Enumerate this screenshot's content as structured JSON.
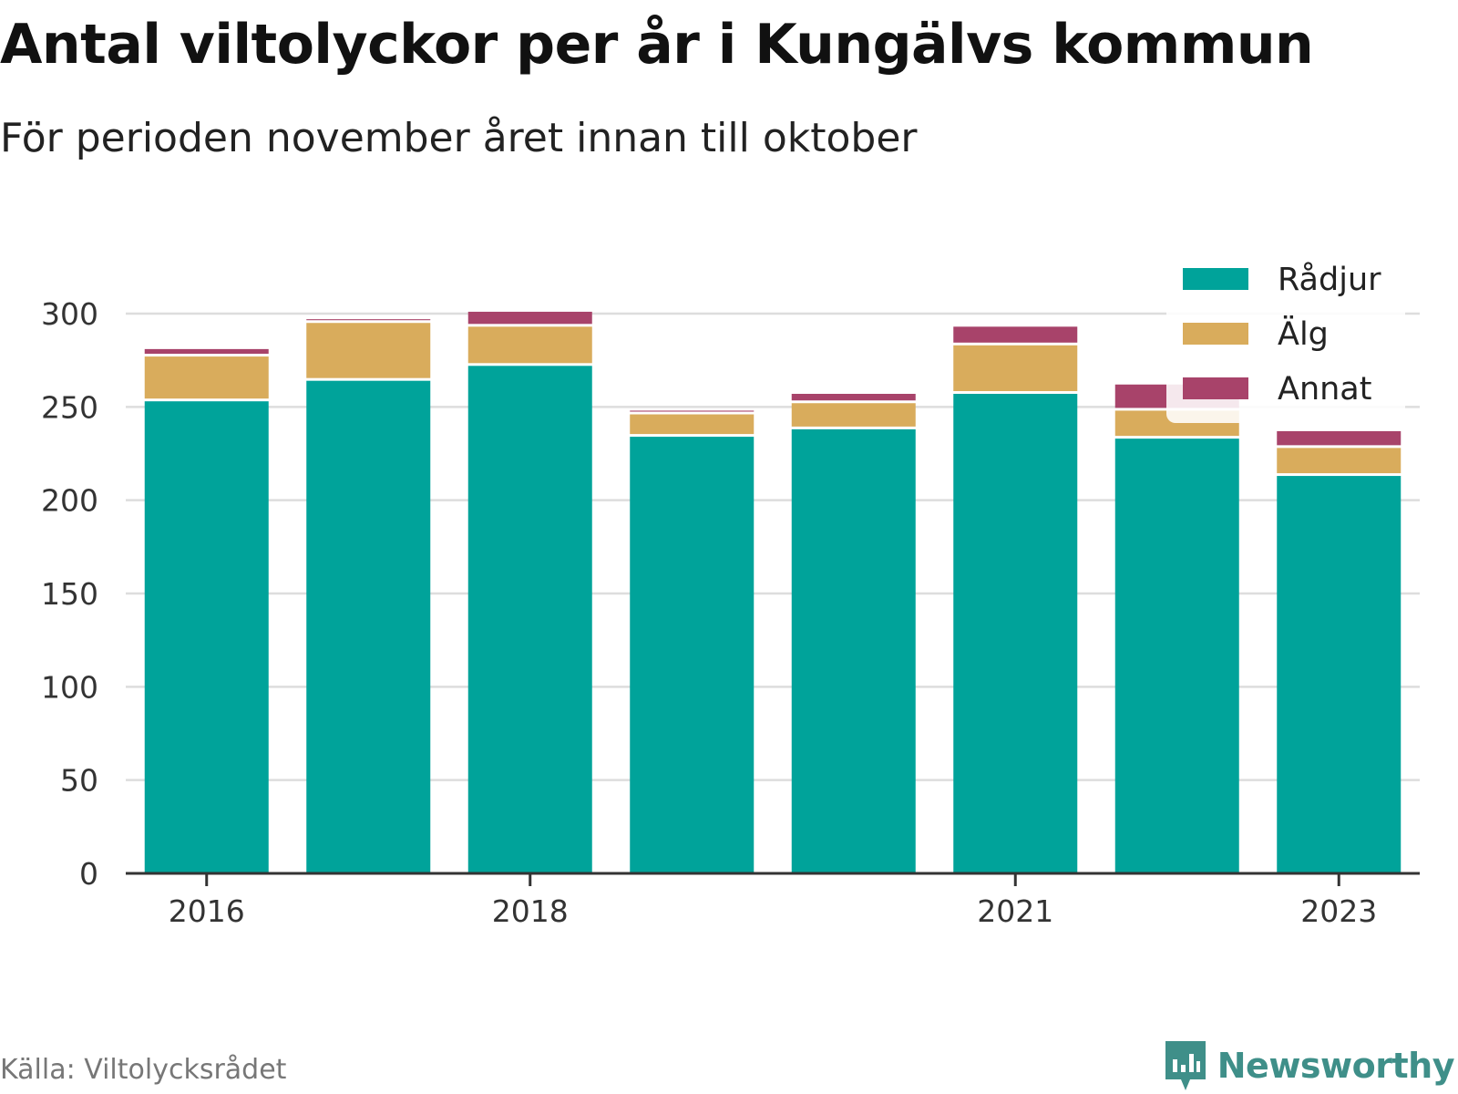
{
  "title": "Antal viltolyckor per år i Kungälvs kommun",
  "subtitle": "För perioden november året innan till oktober",
  "source": "Källa: Viltolycksrådet",
  "brand": "Newsworthy",
  "colors": {
    "Rådjur": "#00a39a",
    "Älg": "#d9ac5c",
    "Annat": "#a8436a",
    "axis": "#333333",
    "grid": "#dddddd"
  },
  "chart_data": {
    "type": "bar",
    "stacked": true,
    "categories": [
      "2016",
      "2017",
      "2018",
      "2019",
      "2020",
      "2021",
      "2022",
      "2023"
    ],
    "x_tick_labels": [
      "2016",
      "2018",
      "2021",
      "2023"
    ],
    "series": [
      {
        "name": "Rådjur",
        "values": [
          253,
          264,
          272,
          234,
          238,
          257,
          233,
          213
        ]
      },
      {
        "name": "Älg",
        "values": [
          24,
          31,
          21,
          12,
          14,
          26,
          15,
          15
        ]
      },
      {
        "name": "Annat",
        "values": [
          4,
          2,
          8,
          2,
          5,
          10,
          14,
          9
        ]
      }
    ],
    "ylim": [
      0,
      300
    ],
    "y_ticks": [
      0,
      50,
      100,
      150,
      200,
      250,
      300
    ],
    "grid": true,
    "legend_position": "top-right",
    "xlabel": "",
    "ylabel": ""
  }
}
